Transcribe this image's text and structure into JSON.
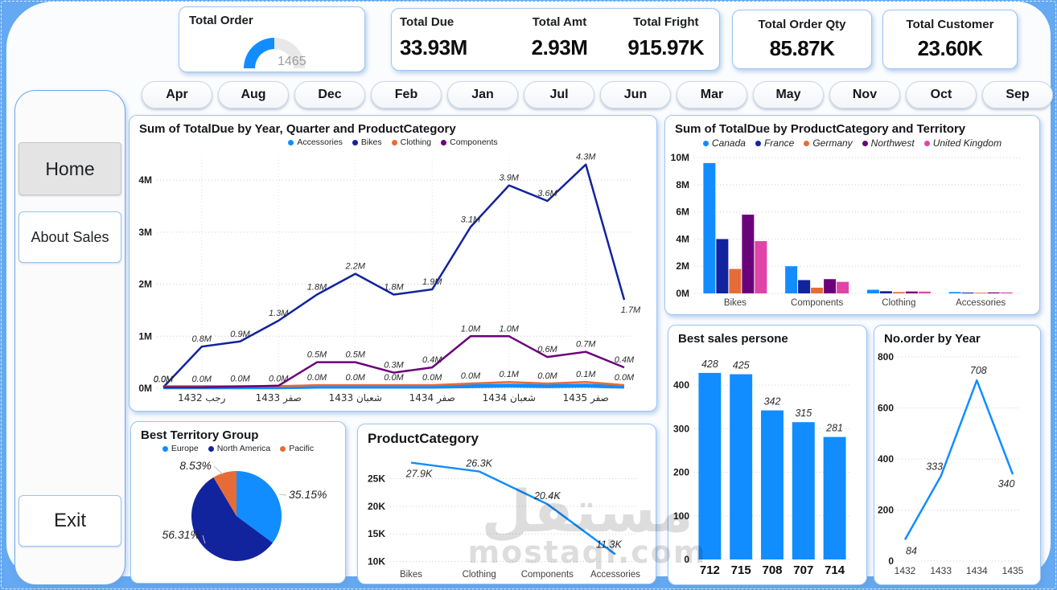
{
  "kpis": {
    "total_order": {
      "label": "Total Order",
      "value": "1465",
      "fraction": 0.5,
      "color": "#118DFF",
      "track": "#E8E8E8"
    },
    "total_due": {
      "label": "Total Due",
      "value": "33.93M"
    },
    "total_amt": {
      "label": "Total Amt",
      "value": "2.93M"
    },
    "total_fright": {
      "label": "Total Fright",
      "value": "915.97K"
    },
    "total_order_qty": {
      "label": "Total Order Qty",
      "value": "85.87K"
    },
    "total_customer": {
      "label": "Total Customer",
      "value": "23.60K"
    }
  },
  "slicer_months": [
    "Apr",
    "Aug",
    "Dec",
    "Feb",
    "Jan",
    "Jul",
    "Jun",
    "Mar",
    "May",
    "Nov",
    "Oct",
    "Sep"
  ],
  "sidebar": {
    "home": "Home",
    "about": "About Sales",
    "exit": "Exit"
  },
  "watermark": {
    "arabic": "مستقل",
    "latin": "mostaql.com"
  },
  "palette": {
    "blue": "#118DFF",
    "navy": "#12239E",
    "orange": "#E66C37",
    "purple": "#6B007B",
    "pink": "#E044A7"
  },
  "chart_data": [
    {
      "type": "line",
      "title": "Sum of TotalDue by Year, Quarter and ProductCategory",
      "x_tick_labels": [
        "رجب 1432",
        "صفر 1433",
        "شعبان 1433",
        "صفر 1434",
        "شعبان 1434",
        "صفر 1435"
      ],
      "x_tick_indices": [
        1,
        3,
        5,
        7,
        9,
        11
      ],
      "y_ticks": [
        0,
        1,
        2,
        3,
        4
      ],
      "y_tick_labels": [
        "0M",
        "1M",
        "2M",
        "3M",
        "4M"
      ],
      "ylim": [
        0,
        4.45
      ],
      "series": [
        {
          "name": "Accessories",
          "color": "#118DFF",
          "values": [
            0.02,
            0.02,
            0.02,
            0.02,
            0.03,
            0.03,
            0.03,
            0.03,
            0.04,
            0.05,
            0.04,
            0.05,
            0.03
          ],
          "labels": [
            "",
            "",
            "",
            "",
            "",
            "",
            "",
            "",
            "",
            "",
            "",
            "",
            ""
          ]
        },
        {
          "name": "Bikes",
          "color": "#12239E",
          "values": [
            0.02,
            0.8,
            0.9,
            1.3,
            1.8,
            2.2,
            1.8,
            1.9,
            3.1,
            3.9,
            3.6,
            4.3,
            1.7
          ],
          "labels": [
            "0.0M",
            "0.8M",
            "0.9M",
            "1.3M",
            "1.8M",
            "2.2M",
            "1.8M",
            "1.9M",
            "3.1M",
            "3.9M",
            "3.6M",
            "4.3M",
            "1.7M"
          ]
        },
        {
          "name": "Clothing",
          "color": "#E66C37",
          "values": [
            0.03,
            0.03,
            0.04,
            0.04,
            0.06,
            0.06,
            0.06,
            0.06,
            0.09,
            0.12,
            0.09,
            0.12,
            0.06
          ],
          "labels": [
            "0.0M",
            "0.0M",
            "0.0M",
            "0.0M",
            "0.0M",
            "0.0M",
            "0.0M",
            "0.0M",
            "0.0M",
            "0.1M",
            "0.0M",
            "0.1M",
            "0.0M"
          ]
        },
        {
          "name": "Components",
          "color": "#6B007B",
          "values": [
            0.02,
            0.02,
            0.03,
            0.05,
            0.5,
            0.5,
            0.3,
            0.4,
            1.0,
            1.0,
            0.6,
            0.7,
            0.4
          ],
          "labels": [
            "",
            "",
            "",
            "",
            "0.5M",
            "0.5M",
            "0.3M",
            "0.4M",
            "1.0M",
            "1.0M",
            "0.6M",
            "0.7M",
            "0.4M"
          ]
        }
      ]
    },
    {
      "type": "bar-grouped",
      "title": "Sum of TotalDue by ProductCategory and Territory",
      "categories": [
        "Bikes",
        "Components",
        "Clothing",
        "Accessories"
      ],
      "y_ticks": [
        0,
        2,
        4,
        6,
        8,
        10
      ],
      "y_tick_labels": [
        "0M",
        "2M",
        "4M",
        "6M",
        "8M",
        "10M"
      ],
      "ylim": [
        0,
        10.3
      ],
      "legend_style": "italic",
      "series": [
        {
          "name": "Canada",
          "color": "#118DFF",
          "values": [
            9.6,
            2.0,
            0.27,
            0.1
          ]
        },
        {
          "name": "France",
          "color": "#12239E",
          "values": [
            4.0,
            0.98,
            0.16,
            0.06
          ]
        },
        {
          "name": "Germany",
          "color": "#E66C37",
          "values": [
            1.8,
            0.42,
            0.1,
            0.05
          ]
        },
        {
          "name": "Northwest",
          "color": "#6B007B",
          "values": [
            5.8,
            1.05,
            0.14,
            0.07
          ]
        },
        {
          "name": "United Kingdom",
          "color": "#E044A7",
          "values": [
            3.85,
            0.85,
            0.13,
            0.07
          ]
        }
      ]
    },
    {
      "type": "bar",
      "title": "Best sales persone",
      "categories": [
        "712",
        "715",
        "708",
        "707",
        "714"
      ],
      "values": [
        428,
        425,
        342,
        315,
        281
      ],
      "labels": [
        "428",
        "425",
        "342",
        "315",
        "281"
      ],
      "color": "#118DFF",
      "y_ticks": [
        0,
        100,
        200,
        300,
        400
      ],
      "y_tick_labels": [
        "0",
        "100",
        "200",
        "300",
        "400"
      ],
      "ylim": [
        0,
        450
      ]
    },
    {
      "type": "line-single",
      "title": "No.order by Year",
      "categories": [
        "1432",
        "1433",
        "1434",
        "1435"
      ],
      "values": [
        84,
        333,
        708,
        340
      ],
      "labels": [
        "84",
        "333",
        "708",
        "340"
      ],
      "color": "#118DFF",
      "y_ticks": [
        0,
        200,
        400,
        600,
        800
      ],
      "y_tick_labels": [
        "0",
        "200",
        "400",
        "600",
        "800"
      ],
      "ylim": [
        0,
        800
      ]
    },
    {
      "type": "pie",
      "title": "Best Territory Group",
      "series": [
        {
          "name": "Europe",
          "color": "#118DFF",
          "value": 35.15
        },
        {
          "name": "North America",
          "color": "#12239E",
          "value": 56.31
        },
        {
          "name": "Pacific",
          "color": "#E66C37",
          "value": 8.53
        }
      ],
      "labels": [
        "35.15%",
        "56.31%",
        "8.53%"
      ]
    },
    {
      "type": "line-single",
      "title": "ProductCategory",
      "categories": [
        "Bikes",
        "Clothing",
        "Components",
        "Accessories"
      ],
      "values": [
        27.9,
        26.3,
        20.4,
        11.3
      ],
      "labels": [
        "27.9K",
        "26.3K",
        "20.4K",
        "11.3K"
      ],
      "color": "#118DFF",
      "y_ticks": [
        10,
        15,
        20,
        25
      ],
      "y_tick_labels": [
        "10K",
        "15K",
        "20K",
        "25K"
      ],
      "ylim": [
        9.5,
        29
      ]
    }
  ]
}
